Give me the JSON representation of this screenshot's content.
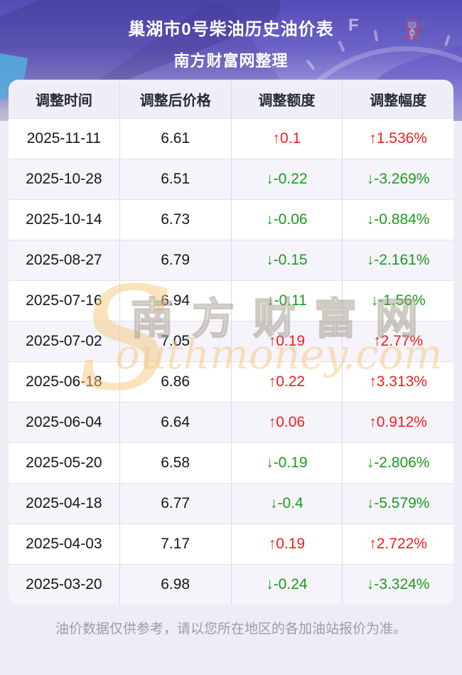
{
  "header": {
    "title": "巢湖市0号柴油历史油价表",
    "subtitle": "南方财富网整理"
  },
  "table": {
    "columns": [
      "调整时间",
      "调整后价格",
      "调整额度",
      "调整幅度"
    ],
    "rows": [
      {
        "date": "2025-11-11",
        "price": "6.61",
        "change": "↑0.1",
        "percent": "↑1.536%",
        "direction": "up"
      },
      {
        "date": "2025-10-28",
        "price": "6.51",
        "change": "↓-0.22",
        "percent": "↓-3.269%",
        "direction": "down"
      },
      {
        "date": "2025-10-14",
        "price": "6.73",
        "change": "↓-0.06",
        "percent": "↓-0.884%",
        "direction": "down"
      },
      {
        "date": "2025-08-27",
        "price": "6.79",
        "change": "↓-0.15",
        "percent": "↓-2.161%",
        "direction": "down"
      },
      {
        "date": "2025-07-16",
        "price": "6.94",
        "change": "↓-0.11",
        "percent": "↓-1.56%",
        "direction": "down"
      },
      {
        "date": "2025-07-02",
        "price": "7.05",
        "change": "↑0.19",
        "percent": "↑2.77%",
        "direction": "up"
      },
      {
        "date": "2025-06-18",
        "price": "6.86",
        "change": "↑0.22",
        "percent": "↑3.313%",
        "direction": "up"
      },
      {
        "date": "2025-06-04",
        "price": "6.64",
        "change": "↑0.06",
        "percent": "↑0.912%",
        "direction": "up"
      },
      {
        "date": "2025-05-20",
        "price": "6.58",
        "change": "↓-0.19",
        "percent": "↓-2.806%",
        "direction": "down"
      },
      {
        "date": "2025-04-18",
        "price": "6.77",
        "change": "↓-0.4",
        "percent": "↓-5.579%",
        "direction": "down"
      },
      {
        "date": "2025-04-03",
        "price": "7.17",
        "change": "↑0.19",
        "percent": "↑2.722%",
        "direction": "up"
      },
      {
        "date": "2025-03-20",
        "price": "6.98",
        "change": "↓-0.24",
        "percent": "↓-3.324%",
        "direction": "down"
      }
    ]
  },
  "watermark": {
    "swoosh": "S",
    "cn": "南方财富网",
    "en": "outhmoney.com"
  },
  "footer": {
    "note": "油价数据仅供参考，请以您所在地区的各加油站报价为准。"
  },
  "icons": {
    "gauge_full_label": "F",
    "fuel_pump": "⛽"
  },
  "colors": {
    "up": "#f51e1e",
    "down": "#1b9c1b",
    "header_purple": "#6b63c7",
    "watermark_orange": "#f6c77c",
    "page_bg": "#ededf6"
  }
}
